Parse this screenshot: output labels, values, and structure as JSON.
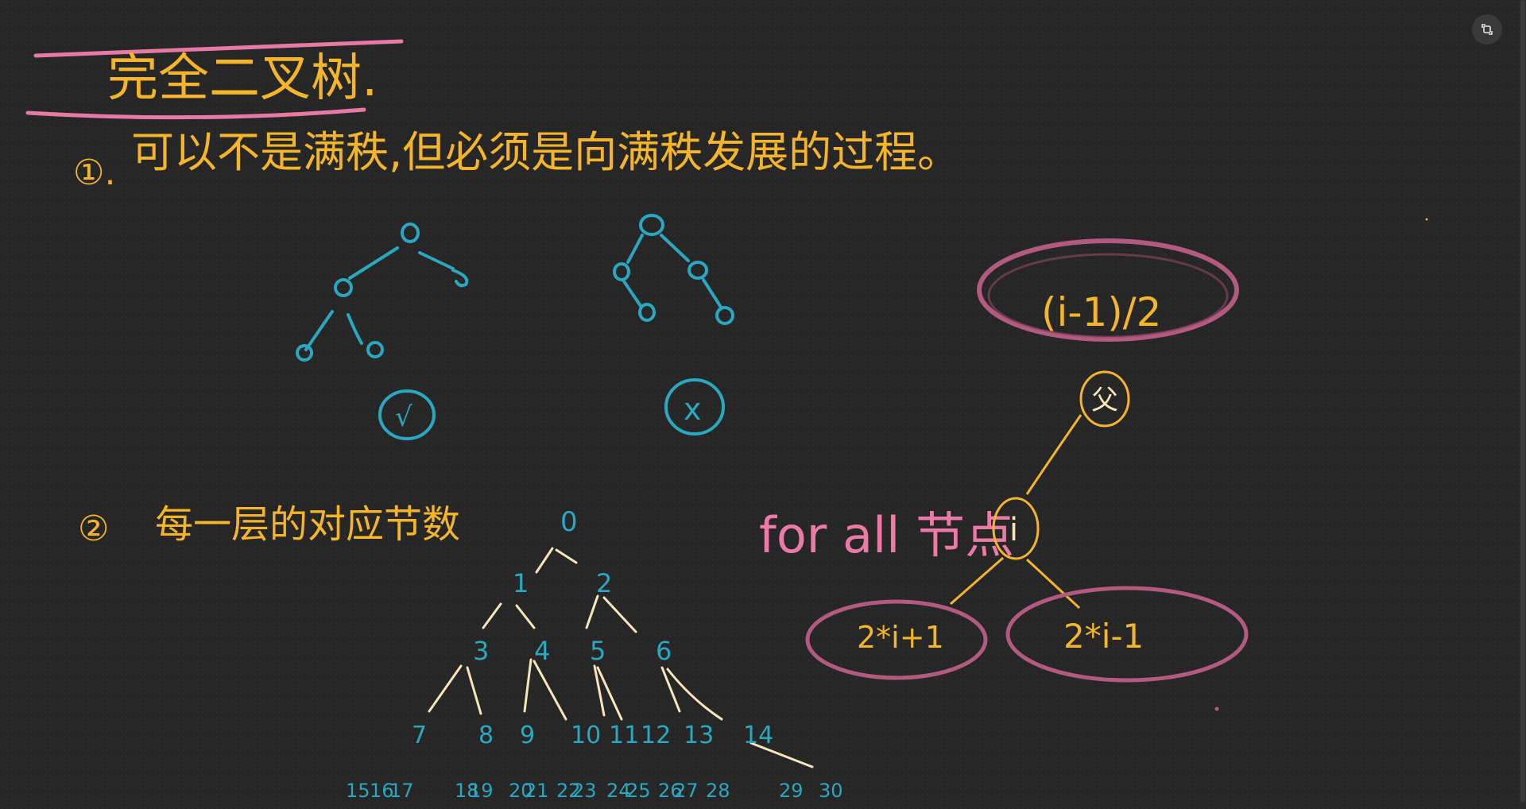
{
  "title": "完全二叉树.",
  "point1": {
    "marker": "①.",
    "text": "可以不是满秩,但必须是向满秩发展的过程。",
    "valid_mark": "√",
    "invalid_mark": "x"
  },
  "point2": {
    "marker": "②",
    "text": "每一层的对应节数"
  },
  "numbered_tree": {
    "level0": [
      "0"
    ],
    "level1": [
      "1",
      "2"
    ],
    "level2": [
      "3",
      "4",
      "5",
      "6"
    ],
    "level3": [
      "7",
      "8",
      "9",
      "10",
      "11",
      "12",
      "13",
      "14"
    ],
    "level4": [
      "15",
      "16",
      "17",
      "18",
      "19",
      "20",
      "21",
      "22",
      "23",
      "24",
      "25",
      "26",
      "27",
      "28",
      "29",
      "30"
    ]
  },
  "formula": {
    "parent_expr": "(i-1)/2",
    "parent_node": "父",
    "for_all": "for all 节点",
    "current_node": "i",
    "left_child": "2*i+1",
    "right_child": "2*i-1"
  },
  "colors": {
    "background": "#262626",
    "orange": "#f4b52a",
    "pink": "#ec7aa6",
    "teal": "#2aa8c0",
    "cream": "#f7e6bc",
    "mauve": "#b25a7f"
  },
  "icons": {
    "fullscreen": "fullscreen-icon"
  }
}
